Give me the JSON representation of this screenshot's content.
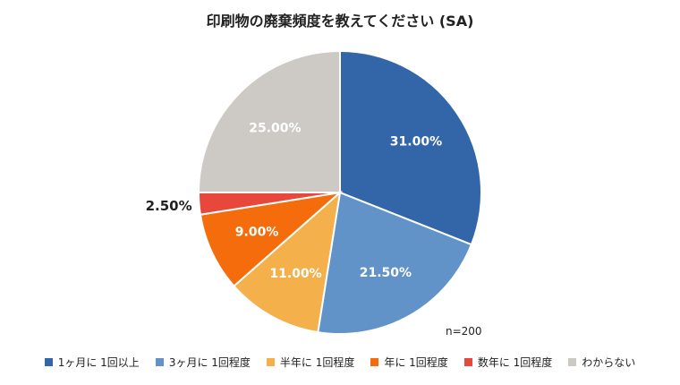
{
  "chart_data": {
    "type": "pie",
    "title": "印刷物の廃棄頻度を教えてください (SA)",
    "note": "n=200",
    "legend_position": "bottom",
    "slices": [
      {
        "name": "1ヶ月に 1回以上",
        "value": 31.0,
        "label": "31.00%",
        "color": "#3366a8"
      },
      {
        "name": "3ヶ月に 1回程度",
        "value": 21.5,
        "label": "21.50%",
        "color": "#6193c8"
      },
      {
        "name": "半年に 1回程度",
        "value": 11.0,
        "label": "11.00%",
        "color": "#f4b04a"
      },
      {
        "name": "年に 1回程度",
        "value": 9.0,
        "label": "9.00%",
        "color": "#f56c0c"
      },
      {
        "name": "数年に 1回程度",
        "value": 2.5,
        "label": "2.50%",
        "color": "#e8473b"
      },
      {
        "name": "わからない",
        "value": 25.0,
        "label": "25.00%",
        "color": "#cdcac5"
      }
    ]
  }
}
